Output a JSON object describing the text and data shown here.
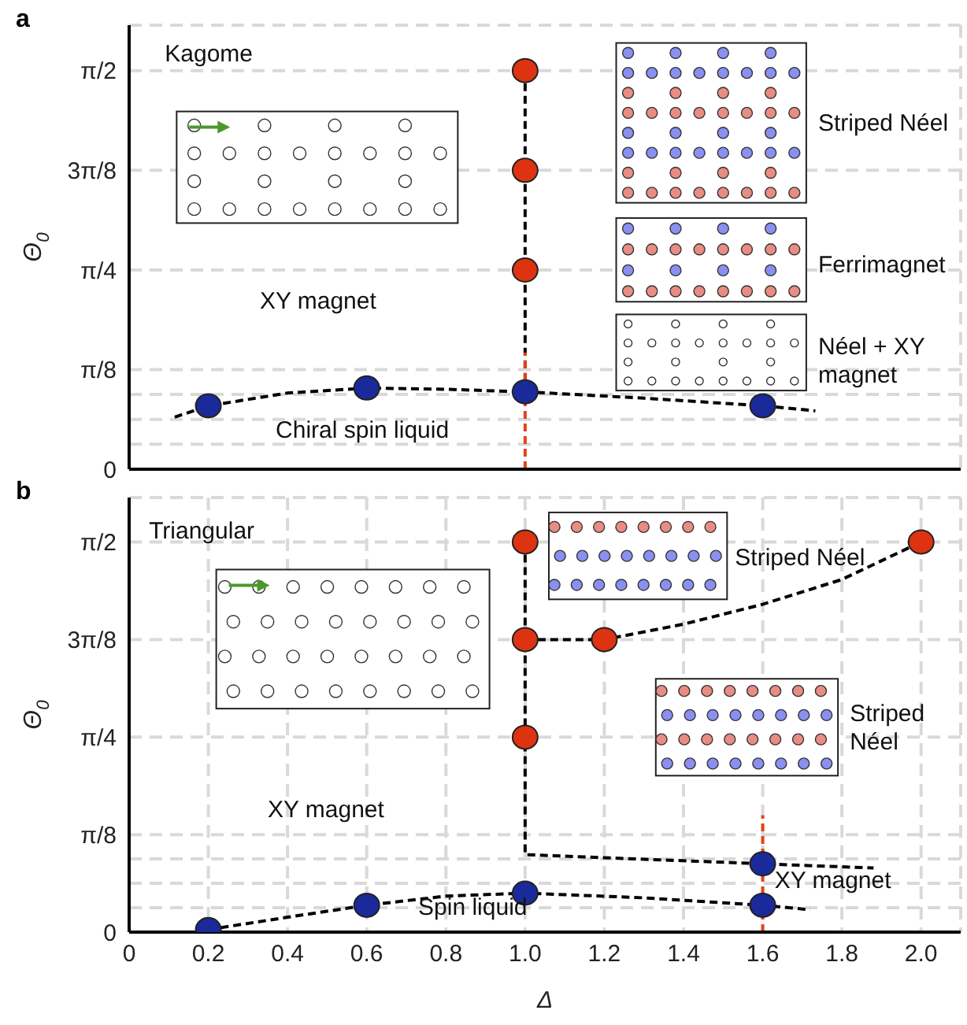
{
  "chart_data": [
    {
      "type": "scatter",
      "title": "a",
      "ylabel": "Θ$_{0}$",
      "xlim": [
        0,
        2.1
      ],
      "ylim": [
        0,
        1.75
      ],
      "tick_labels": "y",
      "grid": true,
      "xticks": [
        {
          "value": 0,
          "label": null
        },
        {
          "value": 0.2,
          "label": null
        },
        {
          "value": 0.4,
          "label": null
        },
        {
          "value": 0.6,
          "label": null
        },
        {
          "value": 0.8,
          "label": null
        },
        {
          "value": 1,
          "label": null
        },
        {
          "value": 1.2,
          "label": null
        },
        {
          "value": 1.4,
          "label": null
        },
        {
          "value": 1.6,
          "label": null
        },
        {
          "value": 1.8,
          "label": null
        },
        {
          "value": 2,
          "label": null
        }
      ],
      "yticks": [
        0,
        {
          "value": 0.0982,
          "label": null
        },
        {
          "value": 0.1963,
          "label": null
        },
        {
          "value": 0.2945,
          "label": null
        },
        {
          "value": 0.3927,
          "label": "π/8"
        },
        {
          "value": 0.7854,
          "label": "π/4"
        },
        {
          "value": 1.1781,
          "label": "3π/8"
        },
        {
          "value": 1.5708,
          "label": "π/2"
        }
      ],
      "series": [
        {
          "type": "line",
          "color": "#000000",
          "line_style": "dashed",
          "x": [
            0.115,
            0.2,
            0.4,
            0.6,
            0.8,
            1.0,
            1.3,
            1.6,
            1.733
          ],
          "values": [
            0.205,
            0.25,
            0.3,
            0.32,
            0.315,
            0.305,
            0.28,
            0.25,
            0.23
          ]
        },
        {
          "type": "line",
          "color": "#000000",
          "line_style": "dashed",
          "x": [
            1,
            1
          ],
          "values": [
            1.571,
            0.305
          ]
        },
        {
          "type": "line",
          "color": "#e8401c",
          "line_style": "dashed",
          "x": [
            1,
            1
          ],
          "values": [
            0,
            0.46
          ]
        },
        {
          "color": "#1a2a9a",
          "marker": "circle",
          "x": [
            0.2,
            0.6,
            1.0,
            1.6
          ],
          "values": [
            0.25,
            0.32,
            0.305,
            0.25
          ]
        },
        {
          "color": "#dd3311",
          "marker": "circle",
          "x": [
            1,
            1,
            1
          ],
          "values": [
            1.571,
            1.178,
            0.785
          ]
        }
      ],
      "annotations": [
        "Kagome",
        "XY magnet",
        "Chiral spin liquid",
        "Striped Néel",
        "Ferrimagnet",
        "Néel + XY magnet"
      ]
    },
    {
      "type": "scatter",
      "title": "b",
      "xlabel": "Δ",
      "ylabel": "Θ$_{0}$",
      "xlim": [
        0,
        2.1
      ],
      "ylim": [
        0,
        1.75
      ],
      "grid": true,
      "xticks": [
        0,
        0.2,
        0.4,
        0.6,
        0.8,
        {
          "value": 1,
          "label": "1.0"
        },
        1.2,
        1.4,
        1.6,
        1.8,
        {
          "value": 2,
          "label": "2.0"
        }
      ],
      "yticks": [
        0,
        {
          "value": 0.0982,
          "label": null
        },
        {
          "value": 0.1963,
          "label": null
        },
        {
          "value": 0.2945,
          "label": null
        },
        {
          "value": 0.3927,
          "label": "π/8"
        },
        {
          "value": 0.7854,
          "label": "π/4"
        },
        {
          "value": 1.1781,
          "label": "3π/8"
        },
        {
          "value": 1.5708,
          "label": "π/2"
        }
      ],
      "series": [
        {
          "type": "line",
          "color": "#000000",
          "line_style": "dashed",
          "x": [
            0.2,
            0.4,
            0.6,
            0.8,
            1.0,
            1.3,
            1.6,
            1.72
          ],
          "values": [
            0.01,
            0.06,
            0.108,
            0.145,
            0.157,
            0.138,
            0.108,
            0.09
          ]
        },
        {
          "type": "line",
          "color": "#000000",
          "line_style": "dashed",
          "x": [
            1,
            1,
            1.6,
            1.88
          ],
          "values": [
            1.571,
            0.312,
            0.275,
            0.258
          ]
        },
        {
          "type": "line",
          "color": "#000000",
          "line_style": "dashed",
          "x": [
            1,
            1.2,
            1.4,
            1.6,
            1.8,
            2.0
          ],
          "values": [
            1.178,
            1.178,
            1.24,
            1.32,
            1.42,
            1.571
          ]
        },
        {
          "type": "line",
          "color": "#e8401c",
          "line_style": "dashed",
          "x": [
            1.6,
            1.6
          ],
          "values": [
            0,
            0.471
          ]
        },
        {
          "color": "#1a2a9a",
          "marker": "circle",
          "x": [
            0.2,
            0.6,
            1.0,
            1.6,
            1.6
          ],
          "values": [
            0.01,
            0.108,
            0.157,
            0.108,
            0.275
          ]
        },
        {
          "color": "#dd3311",
          "marker": "circle",
          "x": [
            1,
            1,
            1,
            1.2,
            2.0
          ],
          "values": [
            1.571,
            1.178,
            0.785,
            1.178,
            1.571
          ]
        }
      ],
      "annotations": [
        "Triangular",
        "XY magnet",
        "Spin liquid",
        "XY magnet",
        "Striped Néel",
        "Striped Néel"
      ]
    }
  ]
}
